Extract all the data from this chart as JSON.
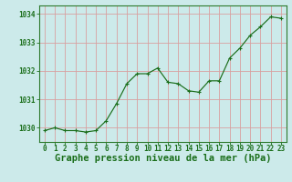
{
  "x": [
    0,
    1,
    2,
    3,
    4,
    5,
    6,
    7,
    8,
    9,
    10,
    11,
    12,
    13,
    14,
    15,
    16,
    17,
    18,
    19,
    20,
    21,
    22,
    23
  ],
  "y": [
    1029.9,
    1030.0,
    1029.9,
    1029.9,
    1029.85,
    1029.9,
    1030.25,
    1030.85,
    1031.55,
    1031.9,
    1031.9,
    1032.1,
    1031.6,
    1031.55,
    1031.3,
    1031.25,
    1031.65,
    1031.65,
    1032.45,
    1032.8,
    1033.25,
    1033.55,
    1033.9,
    1033.85
  ],
  "ylim": [
    1029.5,
    1034.3
  ],
  "yticks": [
    1030,
    1031,
    1032,
    1033,
    1034
  ],
  "xlim": [
    -0.5,
    23.5
  ],
  "xticks": [
    0,
    1,
    2,
    3,
    4,
    5,
    6,
    7,
    8,
    9,
    10,
    11,
    12,
    13,
    14,
    15,
    16,
    17,
    18,
    19,
    20,
    21,
    22,
    23
  ],
  "xlabel": "Graphe pression niveau de la mer (hPa)",
  "line_color": "#1a6e1a",
  "marker": "+",
  "marker_color": "#1a6e1a",
  "bg_color": "#cceaea",
  "grid_color_v": "#d8a0a0",
  "grid_color_h": "#d8a0a0",
  "axis_color": "#2d7a2d",
  "tick_label_color": "#1a6e1a",
  "xlabel_color": "#1a6e1a",
  "font_size_ticks": 5.5,
  "font_size_xlabel": 7.5
}
